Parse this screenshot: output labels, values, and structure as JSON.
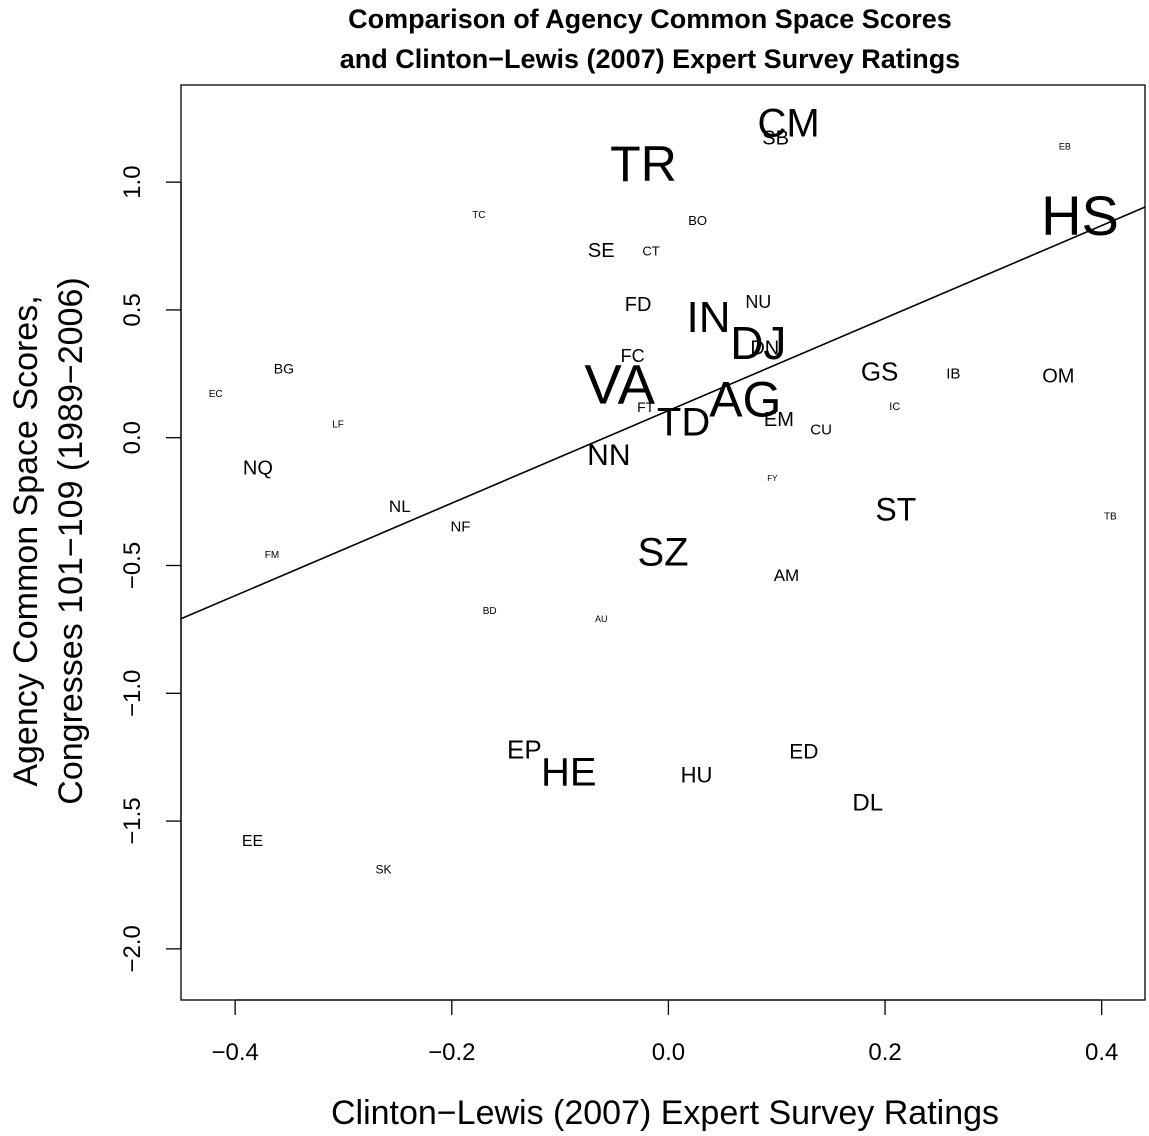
{
  "chart_data": {
    "type": "scatter",
    "title": "Comparison of Agency Common Space Scores",
    "subtitle": "and Clinton−Lewis (2007) Expert Survey Ratings",
    "xlabel": "Clinton−Lewis (2007) Expert Survey Ratings",
    "ylabel_line1": "Agency Common Space Scores,",
    "ylabel_line2": "Congresses 101−109 (1989−2006)",
    "xlim": [
      -0.45,
      0.44
    ],
    "ylim": [
      -2.2,
      1.38
    ],
    "xticks": [
      {
        "value": -0.4,
        "label": "−0.4"
      },
      {
        "value": -0.2,
        "label": "−0.2"
      },
      {
        "value": 0.0,
        "label": "0.0"
      },
      {
        "value": 0.2,
        "label": "0.2"
      },
      {
        "value": 0.4,
        "label": "0.4"
      }
    ],
    "yticks": [
      {
        "value": 1.0,
        "label": "1.0"
      },
      {
        "value": 0.5,
        "label": "0.5"
      },
      {
        "value": 0.0,
        "label": "0.0"
      },
      {
        "value": -0.5,
        "label": "−0.5"
      },
      {
        "value": -1.0,
        "label": "−1.0"
      },
      {
        "value": -1.5,
        "label": "−1.5"
      },
      {
        "value": -2.0,
        "label": "−2.0"
      }
    ],
    "fit_line": {
      "intercept": 0.106,
      "slope": 1.81
    },
    "points": [
      {
        "label": "CM",
        "x": 0.111,
        "y": 1.23,
        "size": 2.0
      },
      {
        "label": "SB",
        "x": 0.099,
        "y": 1.17,
        "size": 1.0
      },
      {
        "label": "EB",
        "x": 0.366,
        "y": 1.14,
        "size": 0.45
      },
      {
        "label": "TR",
        "x": -0.023,
        "y": 1.07,
        "size": 2.5
      },
      {
        "label": "HS",
        "x": 0.38,
        "y": 0.87,
        "size": 2.8
      },
      {
        "label": "TC",
        "x": -0.175,
        "y": 0.87,
        "size": 0.5
      },
      {
        "label": "BO",
        "x": 0.027,
        "y": 0.85,
        "size": 0.65
      },
      {
        "label": "SE",
        "x": -0.062,
        "y": 0.73,
        "size": 1.0
      },
      {
        "label": "CT",
        "x": -0.016,
        "y": 0.73,
        "size": 0.65
      },
      {
        "label": "FD",
        "x": -0.028,
        "y": 0.52,
        "size": 1.0
      },
      {
        "label": "NU",
        "x": 0.083,
        "y": 0.53,
        "size": 0.9
      },
      {
        "label": "IN",
        "x": 0.037,
        "y": 0.47,
        "size": 2.2
      },
      {
        "label": "DN",
        "x": 0.089,
        "y": 0.35,
        "size": 1.0
      },
      {
        "label": "DJ",
        "x": 0.083,
        "y": 0.37,
        "size": 2.3
      },
      {
        "label": "FC",
        "x": -0.033,
        "y": 0.32,
        "size": 0.9
      },
      {
        "label": "BG",
        "x": -0.355,
        "y": 0.27,
        "size": 0.7
      },
      {
        "label": "GS",
        "x": 0.195,
        "y": 0.26,
        "size": 1.3
      },
      {
        "label": "IB",
        "x": 0.263,
        "y": 0.25,
        "size": 0.75
      },
      {
        "label": "OM",
        "x": 0.36,
        "y": 0.24,
        "size": 1.0
      },
      {
        "label": "VA",
        "x": -0.045,
        "y": 0.21,
        "size": 2.8
      },
      {
        "label": "EC",
        "x": -0.418,
        "y": 0.17,
        "size": 0.5
      },
      {
        "label": "AG",
        "x": 0.071,
        "y": 0.15,
        "size": 2.5
      },
      {
        "label": "IC",
        "x": 0.209,
        "y": 0.12,
        "size": 0.55
      },
      {
        "label": "FT",
        "x": -0.021,
        "y": 0.12,
        "size": 0.7
      },
      {
        "label": "TD",
        "x": 0.014,
        "y": 0.06,
        "size": 2.0
      },
      {
        "label": "EM",
        "x": 0.102,
        "y": 0.07,
        "size": 1.0
      },
      {
        "label": "LF",
        "x": -0.305,
        "y": 0.05,
        "size": 0.5
      },
      {
        "label": "CU",
        "x": 0.141,
        "y": 0.03,
        "size": 0.75
      },
      {
        "label": "NN",
        "x": -0.055,
        "y": -0.07,
        "size": 1.5
      },
      {
        "label": "NQ",
        "x": -0.379,
        "y": -0.12,
        "size": 1.0
      },
      {
        "label": "FY",
        "x": 0.096,
        "y": -0.16,
        "size": 0.4
      },
      {
        "label": "ST",
        "x": 0.21,
        "y": -0.28,
        "size": 1.6
      },
      {
        "label": "NL",
        "x": -0.248,
        "y": -0.27,
        "size": 0.85
      },
      {
        "label": "TB",
        "x": 0.408,
        "y": -0.31,
        "size": 0.5
      },
      {
        "label": "NF",
        "x": -0.192,
        "y": -0.35,
        "size": 0.75
      },
      {
        "label": "SZ",
        "x": -0.005,
        "y": -0.45,
        "size": 2.0
      },
      {
        "label": "FM",
        "x": -0.366,
        "y": -0.46,
        "size": 0.5
      },
      {
        "label": "AM",
        "x": 0.109,
        "y": -0.54,
        "size": 0.85
      },
      {
        "label": "BD",
        "x": -0.165,
        "y": -0.68,
        "size": 0.5
      },
      {
        "label": "AU",
        "x": -0.062,
        "y": -0.71,
        "size": 0.45
      },
      {
        "label": "EP",
        "x": -0.133,
        "y": -1.22,
        "size": 1.3
      },
      {
        "label": "ED",
        "x": 0.125,
        "y": -1.23,
        "size": 1.05
      },
      {
        "label": "HE",
        "x": -0.092,
        "y": -1.31,
        "size": 2.0
      },
      {
        "label": "HU",
        "x": 0.026,
        "y": -1.32,
        "size": 1.1
      },
      {
        "label": "DL",
        "x": 0.184,
        "y": -1.43,
        "size": 1.2
      },
      {
        "label": "EE",
        "x": -0.384,
        "y": -1.58,
        "size": 0.8
      },
      {
        "label": "SK",
        "x": -0.263,
        "y": -1.69,
        "size": 0.6
      }
    ]
  }
}
